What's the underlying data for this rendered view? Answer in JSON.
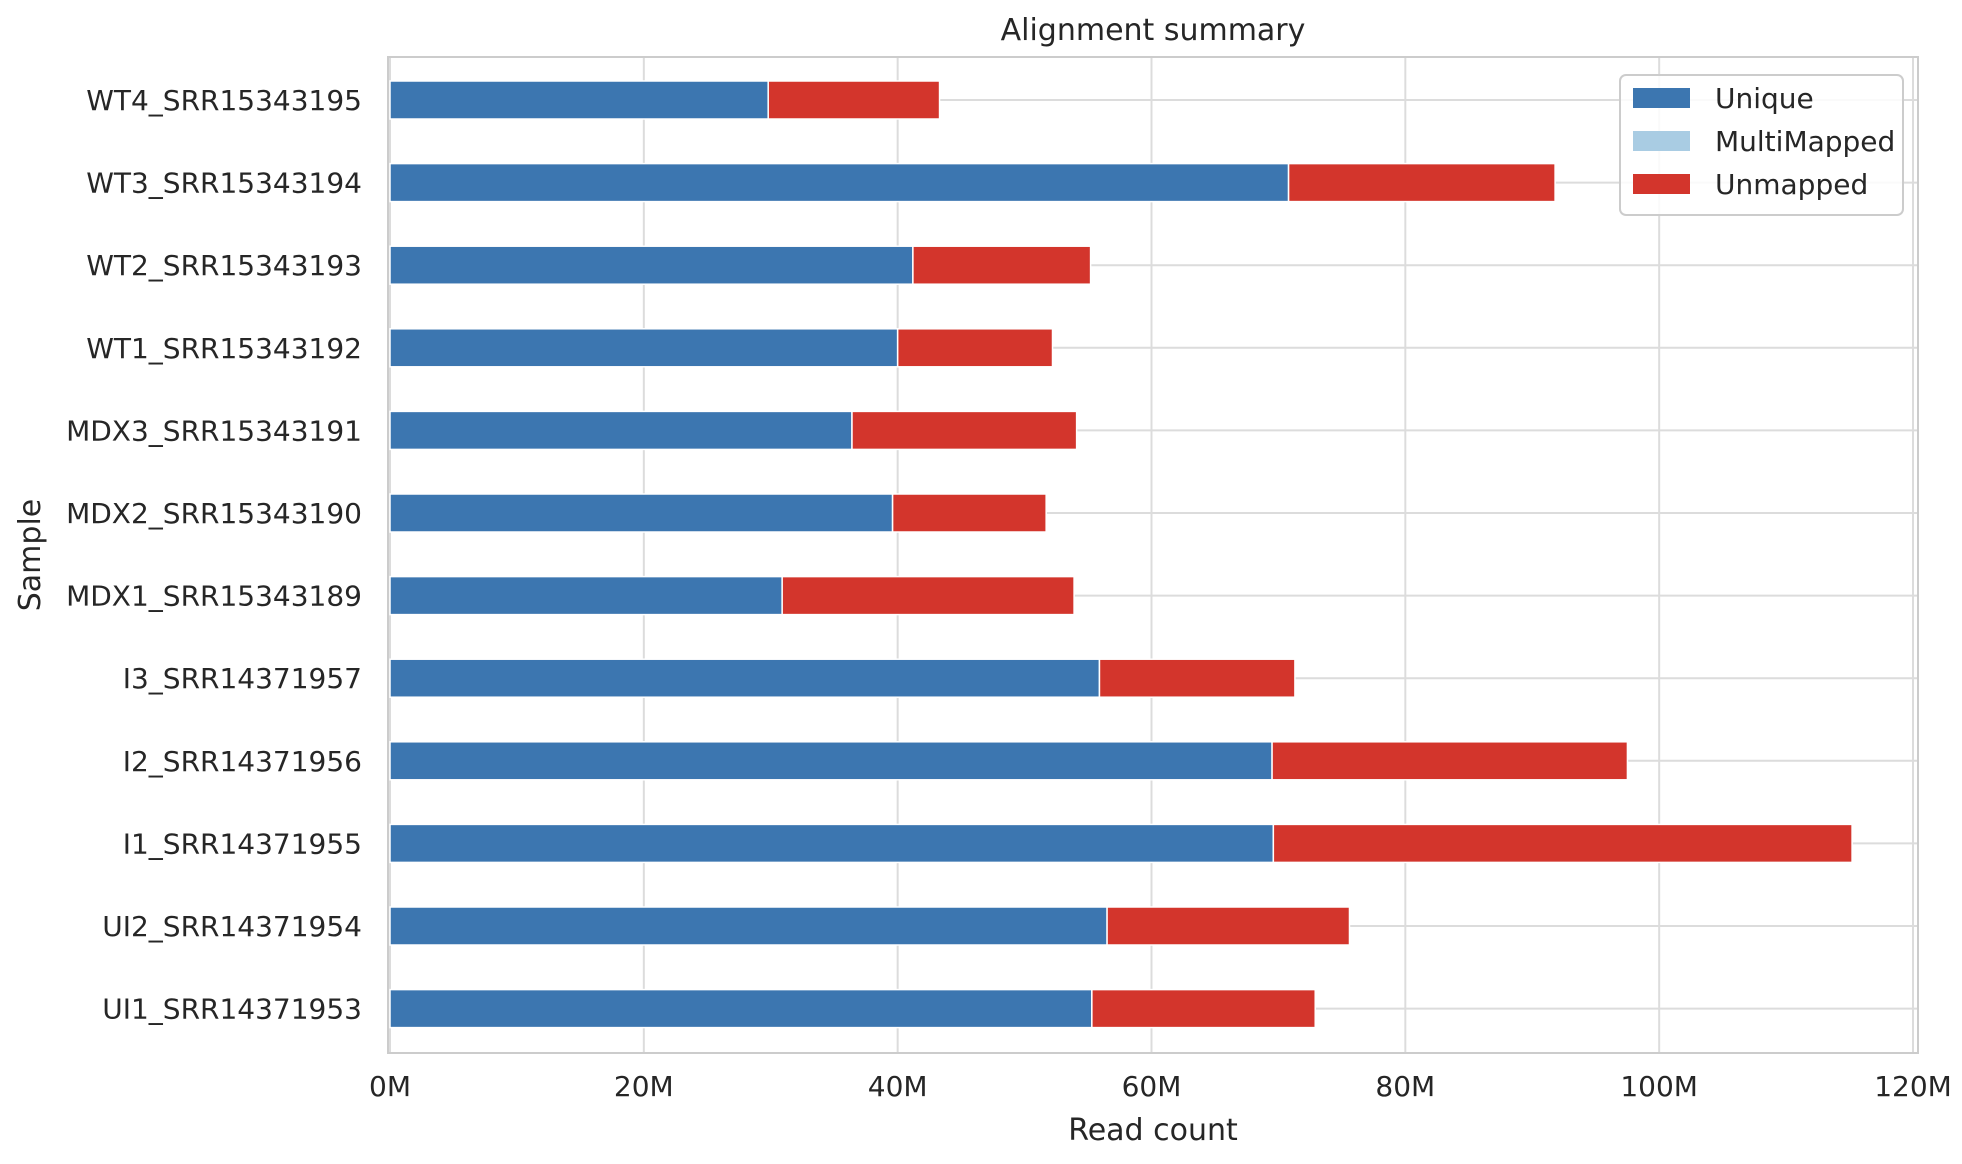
{
  "chart_data": {
    "type": "bar",
    "orientation": "horizontal",
    "stacked": true,
    "title": "Alignment summary",
    "xlabel": "Read count",
    "ylabel": "Sample",
    "xlim": [
      0,
      120000000
    ],
    "xticks": [
      0,
      20000000,
      40000000,
      60000000,
      80000000,
      100000000,
      120000000
    ],
    "xtick_labels": [
      "0M",
      "20M",
      "40M",
      "60M",
      "80M",
      "100M",
      "120M"
    ],
    "grid": true,
    "legend_position": "top-right",
    "categories": [
      "WT4_SRR15343195",
      "WT3_SRR15343194",
      "WT2_SRR15343193",
      "WT1_SRR15343192",
      "MDX3_SRR15343191",
      "MDX2_SRR15343190",
      "MDX1_SRR15343189",
      "I3_SRR14371957",
      "I2_SRR14371956",
      "I1_SRR14371955",
      "UI2_SRR14371954",
      "UI1_SRR14371953"
    ],
    "series": [
      {
        "name": "Unique",
        "color": "#3c76b0",
        "values": [
          29800000,
          70800000,
          41200000,
          40000000,
          36400000,
          39600000,
          30900000,
          55900000,
          69500000,
          69600000,
          56500000,
          55300000
        ]
      },
      {
        "name": "MultiMapped",
        "color": "#a9cce3",
        "values": [
          0,
          0,
          0,
          0,
          0,
          0,
          0,
          0,
          0,
          0,
          0,
          0
        ]
      },
      {
        "name": "Unmapped",
        "color": "#d3352c",
        "values": [
          13500000,
          21000000,
          14000000,
          12200000,
          17700000,
          12100000,
          23000000,
          15400000,
          28000000,
          45600000,
          19100000,
          17600000
        ]
      }
    ]
  }
}
